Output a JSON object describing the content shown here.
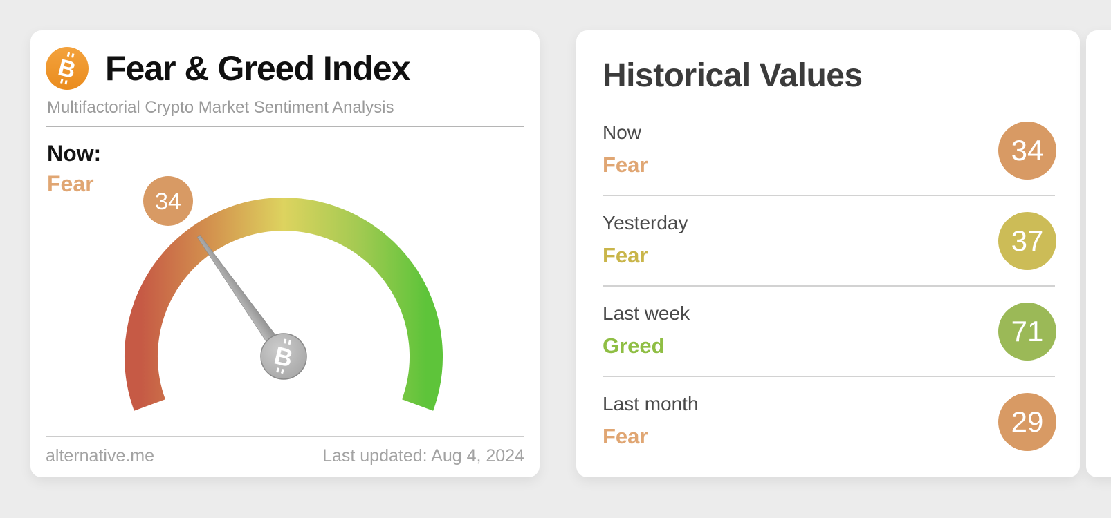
{
  "chart_data": {
    "type": "gauge",
    "title": "Fear & Greed Index",
    "value": 34,
    "min": 0,
    "max": 100,
    "sentiment": "Fear",
    "start_angle_deg": 200,
    "end_angle_deg": -20,
    "arc_colors": [
      "#c65a45",
      "#d4964f",
      "#ddd35f",
      "#a4ca52",
      "#5ec43a"
    ],
    "badge_color": "#d89a64",
    "historical": [
      {
        "label": "Now",
        "sentiment": "Fear",
        "value": 34
      },
      {
        "label": "Yesterday",
        "sentiment": "Fear",
        "value": 37
      },
      {
        "label": "Last week",
        "sentiment": "Greed",
        "value": 71
      },
      {
        "label": "Last month",
        "sentiment": "Fear",
        "value": 29
      }
    ]
  },
  "gauge_card": {
    "title": "Fear & Greed Index",
    "subtitle": "Multifactorial Crypto Market Sentiment Analysis",
    "now_label": "Now:",
    "now_sentiment": "Fear",
    "now_sentiment_color": "#e0a673",
    "gauge_value": "34",
    "footer_site": "alternative.me",
    "footer_updated": "Last updated: Aug 4, 2024",
    "btc_icon_letter": "B"
  },
  "historical_card": {
    "title": "Historical Values",
    "rows": [
      {
        "label": "Now",
        "sentiment": "Fear",
        "value": "34",
        "badge_color": "#d89a64",
        "text_color": "#e0a673"
      },
      {
        "label": "Yesterday",
        "sentiment": "Fear",
        "value": "37",
        "badge_color": "#ccbc57",
        "text_color": "#c9b54a"
      },
      {
        "label": "Last week",
        "sentiment": "Greed",
        "value": "71",
        "badge_color": "#9bb957",
        "text_color": "#8fbe44"
      },
      {
        "label": "Last month",
        "sentiment": "Fear",
        "value": "29",
        "badge_color": "#d89a64",
        "text_color": "#e0a673"
      }
    ]
  }
}
